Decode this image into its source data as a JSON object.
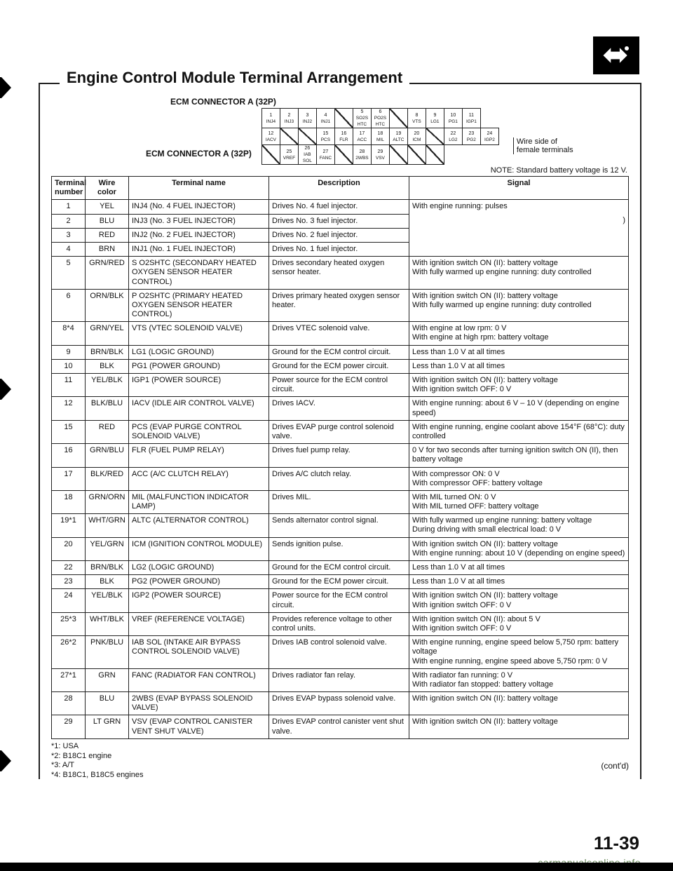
{
  "title": "Engine Control Module Terminal Arrangement",
  "connector_label_top": "ECM CONNECTOR A (32P)",
  "connector_label_side": "ECM CONNECTOR A (32P)",
  "side_note_line1": "Wire side of",
  "side_note_line2": "female terminals",
  "note": "NOTE: Standard battery voltage is 12 V.",
  "contd": "(cont'd)",
  "page_number": "11-39",
  "watermark": "carmanualsonline.info",
  "connector_grid": {
    "row1": [
      "1",
      "2",
      "3",
      "4",
      "",
      "5",
      "6",
      "",
      "8",
      "9",
      "10",
      "11"
    ],
    "row1b": [
      "INJ4",
      "INJ3",
      "INJ2",
      "INJ1",
      "",
      "SO2S\nHTC",
      "PO2S\nHTC",
      "",
      "VTS",
      "LG1",
      "PG1",
      "IGP1"
    ],
    "row2": [
      "12",
      "",
      "",
      "15",
      "16",
      "17",
      "18",
      "19",
      "20",
      "",
      "22",
      "23",
      "24"
    ],
    "row2b": [
      "IACV",
      "",
      "",
      "PCS",
      "FLR",
      "ACC",
      "MIL",
      "ALTC",
      "ICM",
      "",
      "LG2",
      "PG2",
      "IGP2"
    ],
    "row3": [
      "",
      "25",
      "26",
      "27",
      "",
      "28",
      "29",
      "",
      "",
      ""
    ],
    "row3b": [
      "",
      "VREF",
      "IAB\nSOL",
      "FANC",
      "",
      "2WBS",
      "VSV",
      "",
      "",
      ""
    ]
  },
  "table": {
    "headers": [
      "Terminal number",
      "Wire color",
      "Terminal name",
      "Description",
      "Signal"
    ],
    "rows": [
      {
        "num": "1",
        "color": "YEL",
        "name": "INJ4 (No. 4 FUEL INJECTOR)",
        "desc": "Drives No. 4 fuel injector.",
        "sig": "With engine running: pulses",
        "sigspan": 4,
        "sigextra": ")"
      },
      {
        "num": "2",
        "color": "BLU",
        "name": "INJ3 (No. 3 FUEL INJECTOR)",
        "desc": "Drives No. 3 fuel injector."
      },
      {
        "num": "3",
        "color": "RED",
        "name": "INJ2 (No. 2 FUEL INJECTOR)",
        "desc": "Drives No. 2 fuel injector."
      },
      {
        "num": "4",
        "color": "BRN",
        "name": "INJ1 (No. 1 FUEL INJECTOR)",
        "desc": "Drives No. 1 fuel injector."
      },
      {
        "num": "5",
        "color": "GRN/RED",
        "name": "S O2SHTC (SECONDARY HEATED OXYGEN SENSOR HEATER CONTROL)",
        "desc": "Drives secondary heated oxygen sensor heater.",
        "sig": "With ignition switch ON (II): battery voltage\nWith fully warmed up engine running: duty controlled"
      },
      {
        "num": "6",
        "color": "ORN/BLK",
        "name": "P O2SHTC (PRIMARY HEATED OXYGEN SENSOR HEATER CONTROL)",
        "desc": "Drives primary heated oxygen sensor heater.",
        "sig": "With ignition switch ON (II): battery voltage\nWith fully warmed up engine running: duty controlled"
      },
      {
        "num": "8*4",
        "color": "GRN/YEL",
        "name": "VTS (VTEC SOLENOID VALVE)",
        "desc": "Drives VTEC solenoid valve.",
        "sig": "With engine at low rpm: 0 V\nWith engine at high rpm: battery voltage"
      },
      {
        "num": "9",
        "color": "BRN/BLK",
        "name": "LG1 (LOGIC GROUND)",
        "desc": "Ground for the ECM control circuit.",
        "sig": "Less than 1.0 V at all times"
      },
      {
        "num": "10",
        "color": "BLK",
        "name": "PG1 (POWER GROUND)",
        "desc": "Ground for the ECM power circuit.",
        "sig": "Less than 1.0 V at all times"
      },
      {
        "num": "11",
        "color": "YEL/BLK",
        "name": "IGP1 (POWER SOURCE)",
        "desc": "Power source for the ECM control circuit.",
        "sig": "With ignition switch ON (II): battery voltage\nWith ignition switch OFF: 0 V"
      },
      {
        "num": "12",
        "color": "BLK/BLU",
        "name": "IACV (IDLE AIR CONTROL VALVE)",
        "desc": "Drives IACV.",
        "sig": "With engine running: about 6 V – 10 V (depending on engine speed)"
      },
      {
        "num": "15",
        "color": "RED",
        "name": "PCS (EVAP PURGE CONTROL SOLENOID VALVE)",
        "desc": "Drives EVAP purge control solenoid valve.",
        "sig": "With engine running, engine coolant above 154°F (68°C): duty controlled"
      },
      {
        "num": "16",
        "color": "GRN/BLU",
        "name": "FLR (FUEL PUMP RELAY)",
        "desc": "Drives fuel pump relay.",
        "sig": "0 V for two seconds after turning ignition switch ON (II), then battery voltage"
      },
      {
        "num": "17",
        "color": "BLK/RED",
        "name": "ACC (A/C CLUTCH RELAY)",
        "desc": "Drives A/C clutch relay.",
        "sig": "With compressor ON: 0 V\nWith compressor OFF: battery voltage"
      },
      {
        "num": "18",
        "color": "GRN/ORN",
        "name": "MIL (MALFUNCTION INDICATOR LAMP)",
        "desc": "Drives MIL.",
        "sig": "With MIL turned ON: 0 V\nWith MIL turned OFF: battery voltage"
      },
      {
        "num": "19*1",
        "color": "WHT/GRN",
        "name": "ALTC (ALTERNATOR CONTROL)",
        "desc": "Sends alternator control signal.",
        "sig": "With fully warmed up engine running: battery voltage\nDuring driving with small electrical load: 0 V"
      },
      {
        "num": "20",
        "color": "YEL/GRN",
        "name": "ICM (IGNITION CONTROL MODULE)",
        "desc": "Sends ignition pulse.",
        "sig": "With ignition switch ON (II): battery voltage\nWith engine running: about 10 V (depending on engine speed)"
      },
      {
        "num": "22",
        "color": "BRN/BLK",
        "name": "LG2 (LOGIC GROUND)",
        "desc": "Ground for the ECM control circuit.",
        "sig": "Less than 1.0 V at all times"
      },
      {
        "num": "23",
        "color": "BLK",
        "name": "PG2 (POWER GROUND)",
        "desc": "Ground for the ECM power circuit.",
        "sig": "Less than 1.0 V at all times"
      },
      {
        "num": "24",
        "color": "YEL/BLK",
        "name": "IGP2 (POWER SOURCE)",
        "desc": "Power source for the ECM control circuit.",
        "sig": "With ignition switch ON (II): battery voltage\nWith ignition switch OFF: 0 V"
      },
      {
        "num": "25*3",
        "color": "WHT/BLK",
        "name": "VREF (REFERENCE VOLTAGE)",
        "desc": "Provides reference voltage to other control units.",
        "sig": "With ignition switch ON (II): about 5 V\nWith ignition switch OFF: 0 V"
      },
      {
        "num": "26*2",
        "color": "PNK/BLU",
        "name": "IAB SOL (INTAKE AIR BYPASS CONTROL SOLENOID VALVE)",
        "desc": "Drives IAB control solenoid valve.",
        "sig": "With engine running, engine speed below 5,750 rpm: battery voltage\nWith engine running, engine speed above 5,750 rpm: 0 V"
      },
      {
        "num": "27*1",
        "color": "GRN",
        "name": "FANC (RADIATOR FAN CONTROL)",
        "desc": "Drives radiator fan relay.",
        "sig": "With radiator fan running: 0 V\nWith radiator fan stopped: battery voltage"
      },
      {
        "num": "28",
        "color": "BLU",
        "name": "2WBS (EVAP BYPASS SOLENOID VALVE)",
        "desc": "Drives EVAP bypass solenoid valve.",
        "sig": "With ignition switch ON (II): battery voltage"
      },
      {
        "num": "29",
        "color": "LT GRN",
        "name": "VSV (EVAP CONTROL CANISTER VENT SHUT VALVE)",
        "desc": "Drives EVAP control canister vent shut valve.",
        "sig": "With ignition switch ON (II): battery voltage"
      }
    ]
  },
  "footnotes": [
    "*1: USA",
    "*2: B18C1 engine",
    "*3: A/T",
    "*4: B18C1, B18C5 engines"
  ]
}
